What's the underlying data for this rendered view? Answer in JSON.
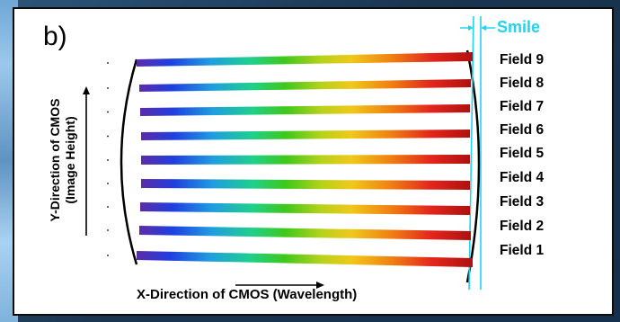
{
  "panel_label": "b)",
  "smile_label": "Smile",
  "y_axis": {
    "line1": "Y-Direction of CMOS",
    "line2": "(Image Height)"
  },
  "x_axis": "X-Direction of CMOS (Wavelength)",
  "fields": [
    "Field 9",
    "Field 8",
    "Field 7",
    "Field 6",
    "Field 5",
    "Field 4",
    "Field 3",
    "Field 2",
    "Field 1"
  ],
  "colors": {
    "smile_accent": "#22d3ee",
    "spectrum": [
      "#5b2ca8",
      "#1f3fe0",
      "#1f9ee0",
      "#1fd08a",
      "#3ec81a",
      "#b8d21a",
      "#f0c81a",
      "#f07f12",
      "#e3261c",
      "#b01010"
    ]
  }
}
